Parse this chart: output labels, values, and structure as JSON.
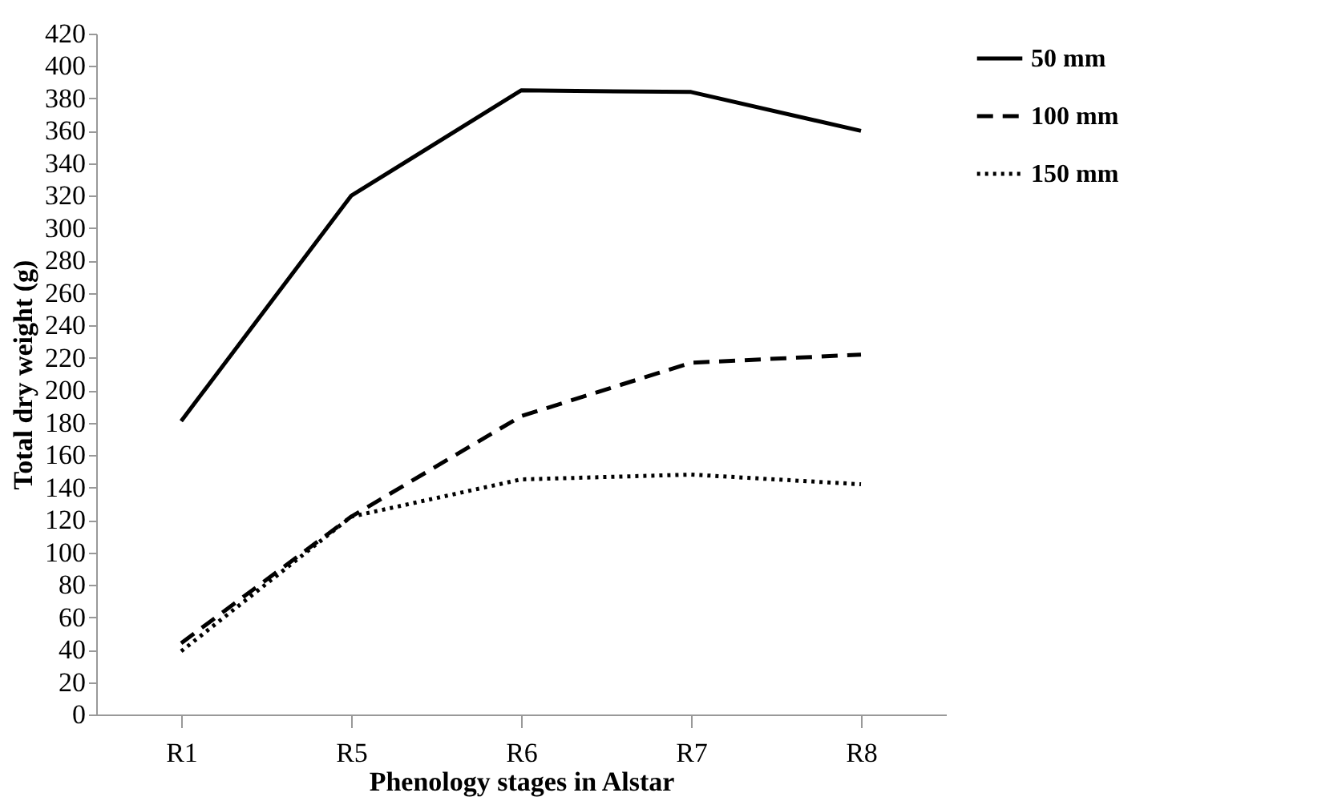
{
  "chart_data": {
    "type": "line",
    "xlabel": "Phenology stages in Alstar",
    "ylabel": "Total dry weight (g)",
    "categories": [
      "R1",
      "R5",
      "R6",
      "R7",
      "R8"
    ],
    "series": [
      {
        "name": "50 mm",
        "color": "#000000",
        "line_style": "solid",
        "values": [
          181,
          320,
          385,
          384,
          360
        ]
      },
      {
        "name": "100 mm",
        "color": "#000000",
        "line_style": "dashed",
        "values": [
          44,
          122,
          184,
          217,
          222
        ]
      },
      {
        "name": "150 mm",
        "color": "#000000",
        "line_style": "dotted",
        "values": [
          39,
          122,
          145,
          148,
          142
        ]
      }
    ],
    "ylim": [
      0,
      420
    ],
    "yticks": [
      0,
      20,
      40,
      60,
      80,
      100,
      120,
      140,
      160,
      180,
      200,
      220,
      240,
      260,
      280,
      300,
      320,
      340,
      360,
      380,
      400,
      420
    ],
    "grid": false,
    "legend": "top right",
    "marker": "none"
  }
}
